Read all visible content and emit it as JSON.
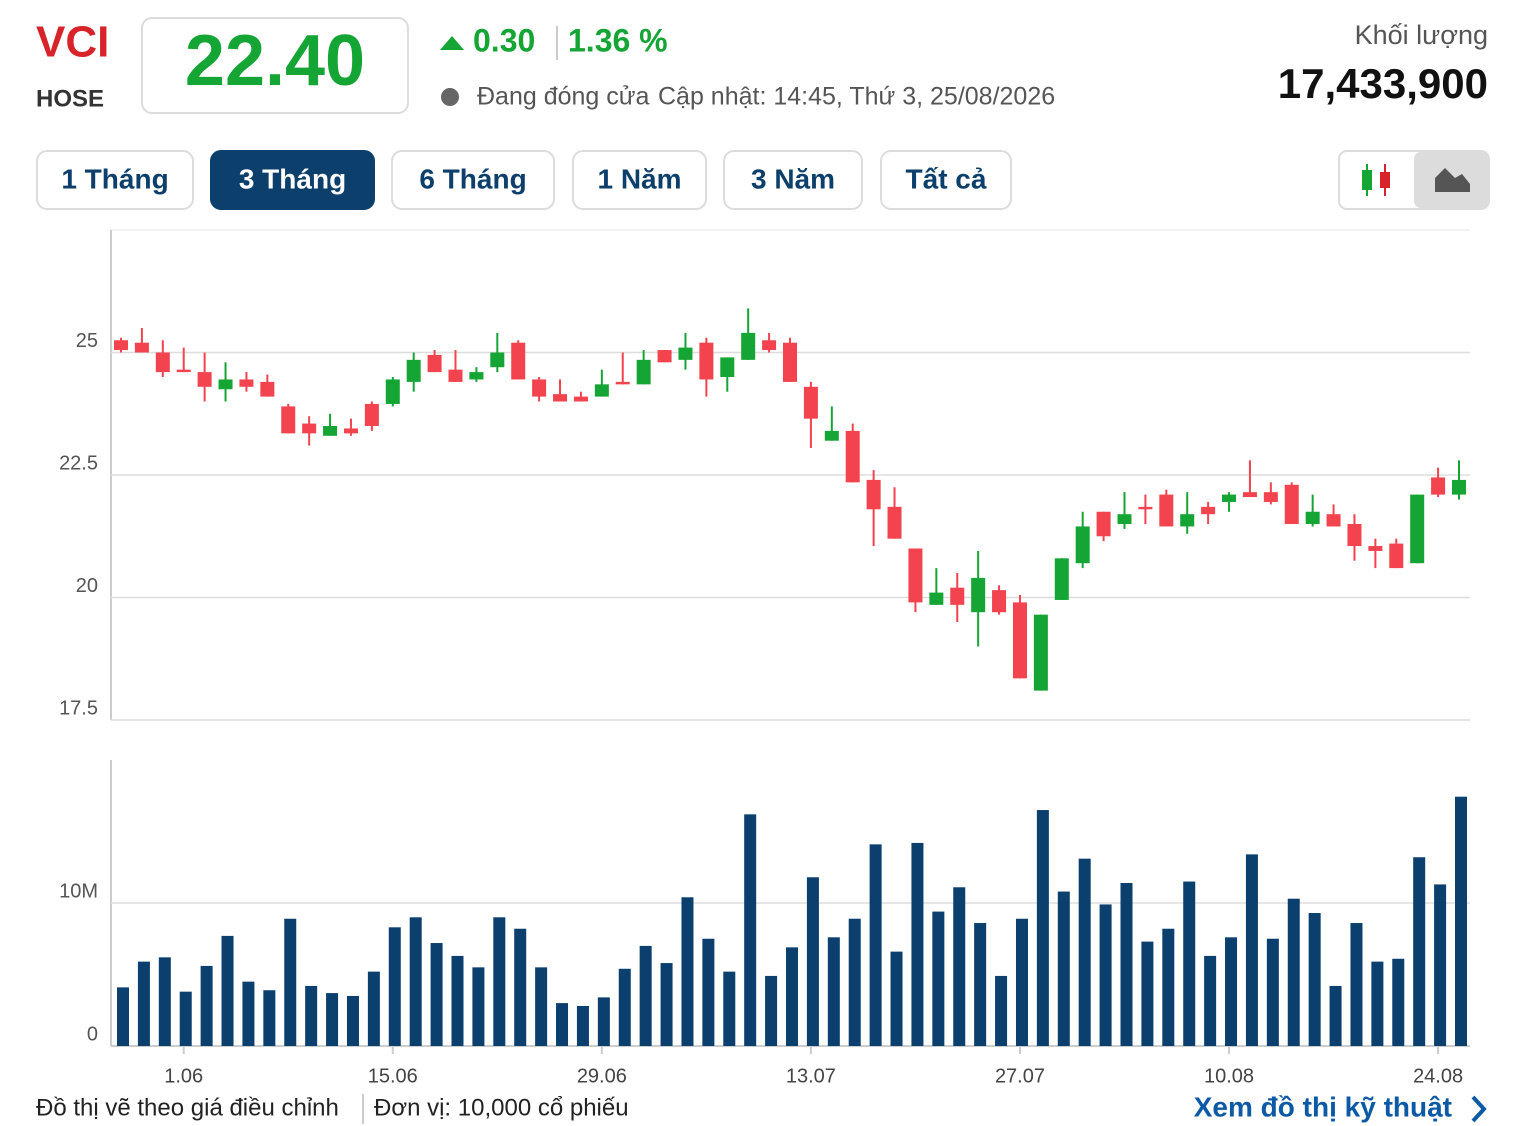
{
  "header": {
    "ticker": "VCI",
    "exchange": "HOSE",
    "price": "22.40",
    "change": "0.30",
    "change_percent": "1.36 %",
    "status": "Đang đóng cửa",
    "updated": "Cập nhật: 14:45, Thứ 3, 25/08/2026",
    "volume_label": "Khối lượng",
    "volume": "17,433,900"
  },
  "tabs": [
    "1 Tháng",
    "3 Tháng",
    "6 Tháng",
    "1 Năm",
    "3 Năm",
    "Tất cả"
  ],
  "chart_data": [
    {
      "type": "candlestick",
      "up_color": "#14a535",
      "down_color": "#f2434e",
      "grid": true,
      "ylim": [
        17.5,
        27.5
      ],
      "yticks": [
        17.5,
        20,
        22.5,
        25
      ],
      "open": [
        25.25,
        25.2,
        25.0,
        24.65,
        24.6,
        24.25,
        24.45,
        24.4,
        23.9,
        23.55,
        23.3,
        23.45,
        23.95,
        23.95,
        24.4,
        24.95,
        24.65,
        24.45,
        24.7,
        25.2,
        24.45,
        24.15,
        24.1,
        24.1,
        24.4,
        24.35,
        25.05,
        24.85,
        25.2,
        24.5,
        24.85,
        25.25,
        25.2,
        24.3,
        23.2,
        23.4,
        22.4,
        21.85,
        21.0,
        19.85,
        20.2,
        19.7,
        20.15,
        19.9,
        18.1,
        19.95,
        20.7,
        21.75,
        21.5,
        21.85,
        22.1,
        21.45,
        21.85,
        21.95,
        22.15,
        22.15,
        22.3,
        21.5,
        21.7,
        21.5,
        21.05,
        21.1,
        20.7,
        22.45,
        22.1
      ],
      "high": [
        25.3,
        25.5,
        25.25,
        25.1,
        25.0,
        24.8,
        24.6,
        24.55,
        23.95,
        23.7,
        23.75,
        23.65,
        24.0,
        24.5,
        25.0,
        25.05,
        25.05,
        24.7,
        25.4,
        25.25,
        24.5,
        24.45,
        24.2,
        24.65,
        25.0,
        25.05,
        25.05,
        25.4,
        25.3,
        24.9,
        25.9,
        25.4,
        25.3,
        24.4,
        23.9,
        23.55,
        22.6,
        22.25,
        21.0,
        20.6,
        20.5,
        20.95,
        20.25,
        20.05,
        19.65,
        20.8,
        21.75,
        21.75,
        22.15,
        22.1,
        22.2,
        22.15,
        21.95,
        22.15,
        22.8,
        22.35,
        22.35,
        22.1,
        21.9,
        21.7,
        21.2,
        21.2,
        22.1,
        22.65,
        22.8
      ],
      "low": [
        25.0,
        25.0,
        24.5,
        24.6,
        24.0,
        24.0,
        24.2,
        24.1,
        23.35,
        23.1,
        23.3,
        23.3,
        23.4,
        23.9,
        24.2,
        24.6,
        24.4,
        24.4,
        24.6,
        24.45,
        24.0,
        24.0,
        24.0,
        24.1,
        24.35,
        24.35,
        24.8,
        24.65,
        24.1,
        24.2,
        24.85,
        25.0,
        24.4,
        23.05,
        23.2,
        22.35,
        21.05,
        21.2,
        19.7,
        19.85,
        19.5,
        19.0,
        19.65,
        18.35,
        18.1,
        19.95,
        20.6,
        21.15,
        21.4,
        21.5,
        21.45,
        21.3,
        21.5,
        21.75,
        22.05,
        21.9,
        21.5,
        21.45,
        21.45,
        20.75,
        20.6,
        20.6,
        20.7,
        22.05,
        22.0
      ],
      "close": [
        25.05,
        25.0,
        24.6,
        24.6,
        24.3,
        24.45,
        24.3,
        24.1,
        23.35,
        23.35,
        23.5,
        23.35,
        23.5,
        24.45,
        24.85,
        24.6,
        24.4,
        24.6,
        25.0,
        24.45,
        24.1,
        24.0,
        24.0,
        24.35,
        24.35,
        24.85,
        24.8,
        25.1,
        24.45,
        24.9,
        25.4,
        25.05,
        24.4,
        23.65,
        23.4,
        22.35,
        21.8,
        21.2,
        19.9,
        20.1,
        19.85,
        20.4,
        19.7,
        18.35,
        19.65,
        20.8,
        21.45,
        21.25,
        21.7,
        21.8,
        21.45,
        21.7,
        21.7,
        22.1,
        22.05,
        21.95,
        21.5,
        21.75,
        21.45,
        21.05,
        20.95,
        20.6,
        22.1,
        22.1,
        22.4
      ]
    },
    {
      "type": "bar",
      "color": "#0b3f6e",
      "grid": true,
      "ylim": [
        0,
        20000000
      ],
      "yticks": [
        0,
        {
          "value": 10000000,
          "label": "10M"
        }
      ],
      "categories": [
        null,
        null,
        null,
        "1.06",
        null,
        null,
        null,
        null,
        null,
        null,
        null,
        null,
        null,
        "15.06",
        null,
        null,
        null,
        null,
        null,
        null,
        null,
        null,
        null,
        "29.06",
        null,
        null,
        null,
        null,
        null,
        null,
        null,
        null,
        null,
        "13.07",
        null,
        null,
        null,
        null,
        null,
        null,
        null,
        null,
        null,
        "27.07",
        null,
        null,
        null,
        null,
        null,
        null,
        null,
        null,
        null,
        "10.08",
        null,
        null,
        null,
        null,
        null,
        null,
        null,
        null,
        null,
        "24.08",
        null
      ],
      "values": [
        4100000,
        5900000,
        6200000,
        3800000,
        5600000,
        7700000,
        4500000,
        3900000,
        8900000,
        4200000,
        3700000,
        3500000,
        5200000,
        8300000,
        9000000,
        7200000,
        6300000,
        5500000,
        9000000,
        8200000,
        5500000,
        3000000,
        2800000,
        3400000,
        5400000,
        7000000,
        5800000,
        10400000,
        7500000,
        5200000,
        16200000,
        4900000,
        6900000,
        11800000,
        7600000,
        8900000,
        14100000,
        6600000,
        14200000,
        9400000,
        11100000,
        8600000,
        4900000,
        8900000,
        16500000,
        10800000,
        13100000,
        9900000,
        11400000,
        7300000,
        8200000,
        11500000,
        6300000,
        7600000,
        13400000,
        7500000,
        10300000,
        9300000,
        4200000,
        8600000,
        5900000,
        6100000,
        13200000,
        11300000,
        17433900
      ]
    }
  ],
  "footer": {
    "note": "Đồ thị vẽ theo giá điều chỉnh",
    "unit": "Đơn vị: 10,000 cổ phiếu",
    "link": "Xem đồ thị kỹ thuật"
  }
}
